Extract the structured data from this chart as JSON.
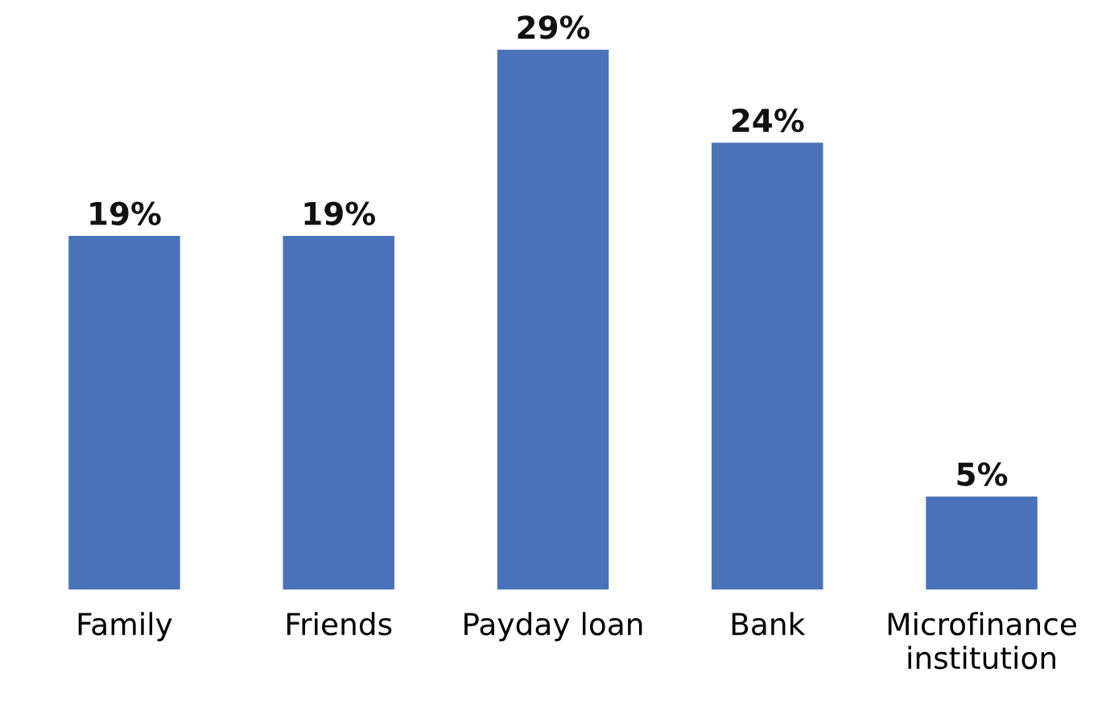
{
  "chart_data": {
    "type": "bar",
    "categories": [
      "Family",
      "Friends",
      "Payday loan",
      "Bank",
      "Microfinance\ninstitution"
    ],
    "values": [
      19,
      19,
      29,
      24,
      5
    ],
    "value_labels": [
      "19%",
      "19%",
      "29%",
      "24%",
      "5%"
    ],
    "color": "#4a72b8",
    "grid": false,
    "legend": false,
    "tick_labels": "x"
  }
}
